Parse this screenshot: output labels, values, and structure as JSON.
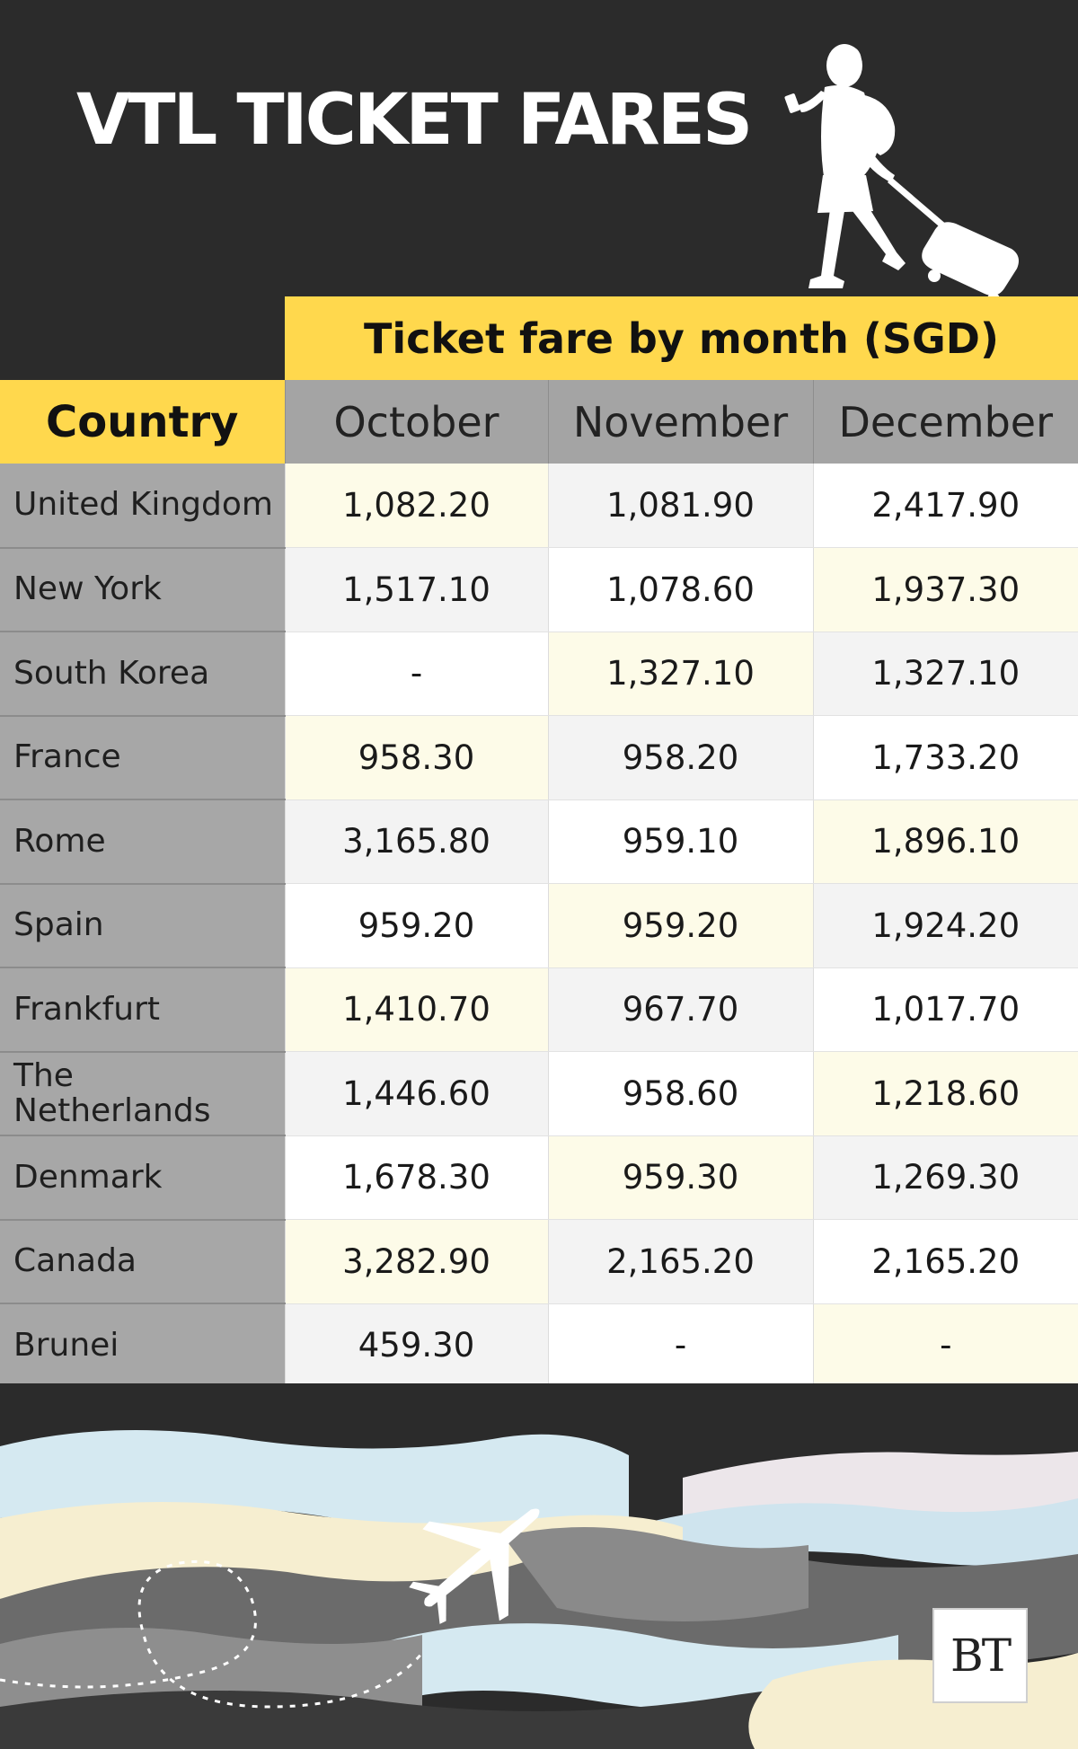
{
  "title": "VTL TICKET FARES",
  "chart_data": {
    "type": "table",
    "group_header": "Ticket fare by month (SGD)",
    "row_header": "Country",
    "columns": [
      "October",
      "November",
      "December"
    ],
    "rows": [
      {
        "country": "United Kingdom",
        "values": [
          "1,082.20",
          "1,081.90",
          "2,417.90"
        ],
        "bg": [
          "y",
          "g",
          "w"
        ]
      },
      {
        "country": "New York",
        "values": [
          "1,517.10",
          "1,078.60",
          "1,937.30"
        ],
        "bg": [
          "g",
          "w",
          "y"
        ]
      },
      {
        "country": "South Korea",
        "values": [
          "-",
          "1,327.10",
          "1,327.10"
        ],
        "bg": [
          "w",
          "y",
          "g"
        ]
      },
      {
        "country": "France",
        "values": [
          "958.30",
          "958.20",
          "1,733.20"
        ],
        "bg": [
          "y",
          "g",
          "w"
        ]
      },
      {
        "country": "Rome",
        "values": [
          "3,165.80",
          "959.10",
          "1,896.10"
        ],
        "bg": [
          "g",
          "w",
          "y"
        ]
      },
      {
        "country": "Spain",
        "values": [
          "959.20",
          "959.20",
          "1,924.20"
        ],
        "bg": [
          "w",
          "y",
          "g"
        ]
      },
      {
        "country": "Frankfurt",
        "values": [
          "1,410.70",
          "967.70",
          "1,017.70"
        ],
        "bg": [
          "y",
          "g",
          "w"
        ]
      },
      {
        "country": "The Netherlands",
        "values": [
          "1,446.60",
          "958.60",
          "1,218.60"
        ],
        "bg": [
          "g",
          "w",
          "y"
        ]
      },
      {
        "country": "Denmark",
        "values": [
          "1,678.30",
          "959.30",
          "1,269.30"
        ],
        "bg": [
          "w",
          "y",
          "g"
        ]
      },
      {
        "country": "Canada",
        "values": [
          "3,282.90",
          "2,165.20",
          "2,165.20"
        ],
        "bg": [
          "y",
          "g",
          "w"
        ]
      },
      {
        "country": "Brunei",
        "values": [
          "459.30",
          "-",
          "-"
        ],
        "bg": [
          "g",
          "w",
          "y"
        ]
      }
    ]
  },
  "logo": "BT",
  "icons": {
    "traveler": "traveler-with-suitcase-icon",
    "airplane": "airplane-icon"
  },
  "colors": {
    "background": "#2b2b2b",
    "header_yellow": "#ffd84d",
    "country_gray": "#a7a7a7",
    "month_gray": "#a4a4a4",
    "cell_white": "#ffffff",
    "cell_light_gray": "#f3f3f3",
    "cell_yellow": "#fdfbe8"
  }
}
